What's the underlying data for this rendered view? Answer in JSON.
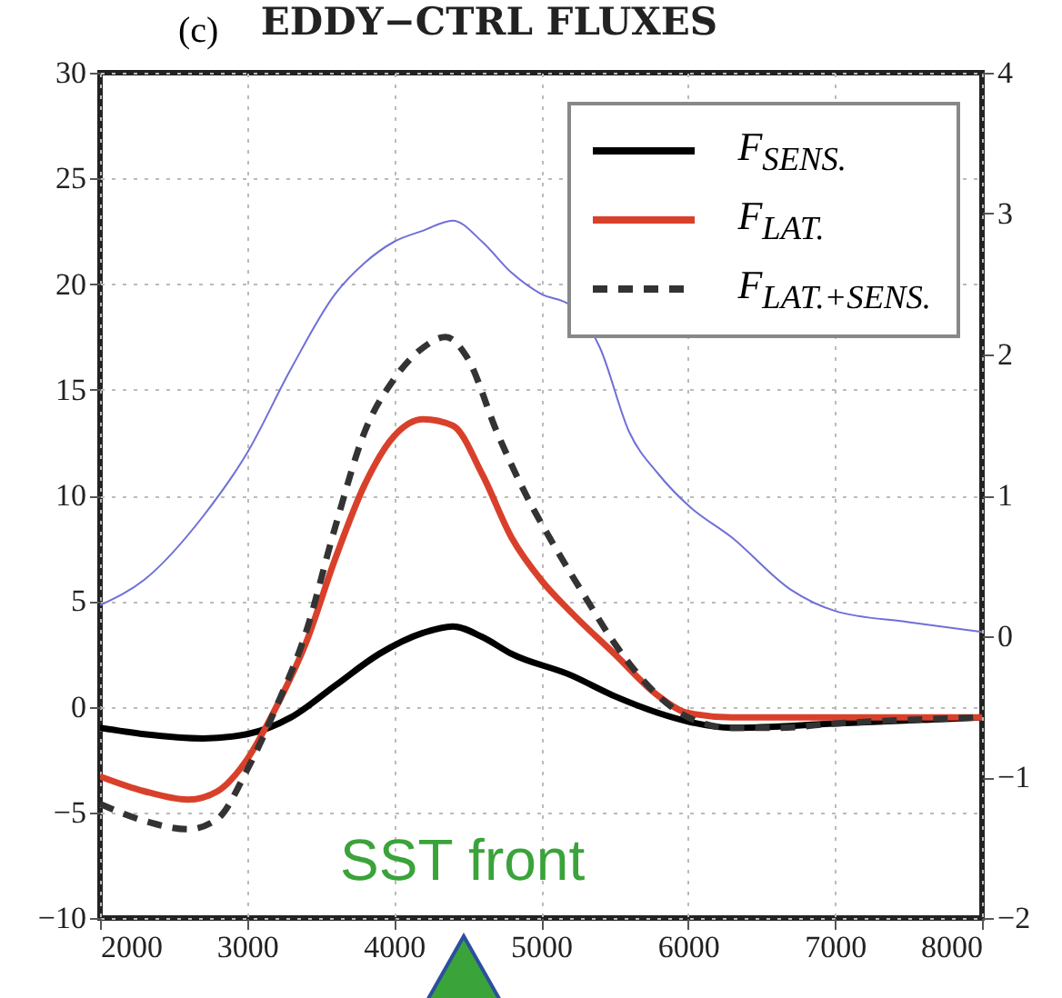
{
  "chart_data": {
    "type": "line",
    "title": "EDDY−CTRL FLUXES",
    "annotations": [
      "(c)",
      "SST front"
    ],
    "xlim": [
      2000,
      8000
    ],
    "xticks": [
      2000,
      3000,
      4000,
      5000,
      6000,
      7000,
      8000
    ],
    "ylim": [
      -10,
      30
    ],
    "yticks": [
      -10,
      -5,
      0,
      5,
      10,
      15,
      20,
      25,
      30
    ],
    "y2lim": [
      -2,
      4
    ],
    "y2ticks": [
      -2,
      -1,
      0,
      1,
      2,
      3,
      4
    ],
    "grid": true,
    "legend": "top right",
    "series": [
      {
        "name": "F$_{SENS.}$",
        "color": "#000000",
        "x": [
          2000,
          2300,
          2700,
          3000,
          3300,
          3600,
          3900,
          4200,
          4400,
          4600,
          4800,
          5200,
          5500,
          5800,
          6000,
          6300,
          7000,
          8000
        ],
        "values": [
          -1,
          -1.3,
          -1.5,
          -1.3,
          -0.5,
          1,
          2.5,
          3.5,
          3.8,
          3.3,
          2.5,
          1.5,
          0.5,
          -0.3,
          -0.7,
          -1,
          -0.8,
          -0.5
        ]
      },
      {
        "name": "F$_{LAT.}$",
        "color": "#d9402b",
        "x": [
          2000,
          2300,
          2600,
          2800,
          3000,
          3200,
          3400,
          3600,
          3800,
          4000,
          4200,
          4400,
          4600,
          4800,
          5000,
          5200,
          5500,
          5800,
          6000,
          6300,
          7000,
          8000
        ],
        "values": [
          -3.3,
          -4,
          -4.4,
          -4,
          -2.5,
          0,
          3,
          7,
          10.5,
          12.8,
          13.6,
          13.3,
          11,
          8,
          6,
          4.5,
          2.5,
          0.5,
          -0.3,
          -0.5,
          -0.5,
          -0.5
        ]
      },
      {
        "name": "F$_{LAT.+SENS.}$",
        "color": "#333333",
        "line_style": "dashed",
        "x": [
          2000,
          2300,
          2600,
          2800,
          3000,
          3200,
          3400,
          3600,
          3800,
          4000,
          4200,
          4350,
          4500,
          4700,
          4900,
          5100,
          5300,
          5500,
          5800,
          6000,
          6300,
          6600,
          7000,
          8000
        ],
        "values": [
          -4.6,
          -5.4,
          -5.8,
          -5.3,
          -3,
          0,
          3.5,
          8.5,
          13,
          15.5,
          17,
          17.5,
          16.5,
          13,
          10,
          7.5,
          5.2,
          3,
          0.5,
          -0.5,
          -1,
          -1,
          -0.8,
          -0.5
        ]
      },
      {
        "color": "#6f6fd8",
        "axis": "y2",
        "x": [
          2000,
          2300,
          2700,
          3000,
          3300,
          3600,
          3800,
          4000,
          4200,
          4400,
          4600,
          4800,
          5000,
          5200,
          5400,
          5600,
          5800,
          6000,
          6300,
          6700,
          7000,
          7500,
          8000
        ],
        "values": [
          0.22,
          0.4,
          0.85,
          1.3,
          1.9,
          2.43,
          2.65,
          2.8,
          2.88,
          2.95,
          2.8,
          2.58,
          2.43,
          2.35,
          2.05,
          1.45,
          1.15,
          0.93,
          0.7,
          0.33,
          0.18,
          0.1,
          0.03
        ]
      }
    ]
  }
}
